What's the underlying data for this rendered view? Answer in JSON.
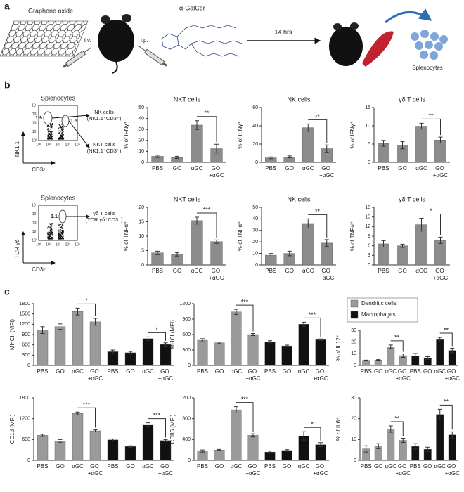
{
  "labels": {
    "a": "a",
    "b": "b",
    "c": "c"
  },
  "scheme": {
    "material": "Graphene oxide",
    "route1": "i.v.",
    "route2": "i.p.",
    "drug": "α-GalCer",
    "time": "14 hrs",
    "cells": "Splenocytes"
  },
  "flow": [
    {
      "title": "Splenocytes",
      "ylabel": "NK1.1",
      "xlabel": "CD3ε",
      "ticks": [
        "10⁰",
        "10¹",
        "10²",
        "10³",
        "10⁴"
      ],
      "gates": [
        {
          "value": 1.9,
          "label": [
            "NK cells",
            "(NK1.1⁺CD3⁻)"
          ]
        },
        {
          "value": 1.5,
          "label": [
            "NKT cells",
            "(NK1.1⁺CD3⁺)"
          ]
        }
      ]
    },
    {
      "title": "Splenocytes",
      "ylabel": "TCR γδ",
      "xlabel": "CD3ε",
      "ticks": [
        "10⁰",
        "10¹",
        "10²",
        "10³",
        "10⁴"
      ],
      "gates": [
        {
          "value": 1.1,
          "label": [
            "γδ T cells",
            "(TCR γδ⁺CD3⁺)"
          ]
        }
      ]
    }
  ],
  "chart_data": [
    {
      "type": "bar",
      "title": "NKT cells",
      "ylabel": "% of IFNγ⁺",
      "categories": [
        "PBS",
        "GO",
        "αGC",
        "GO +αGC"
      ],
      "values": [
        5.5,
        4.5,
        34,
        12.5
      ],
      "errors": [
        1,
        1,
        4,
        4
      ],
      "color": "#8c8c8c",
      "ylim": [
        0,
        50
      ],
      "yticks": [
        0,
        10,
        20,
        30,
        40,
        50
      ],
      "significance": "**"
    },
    {
      "type": "bar",
      "title": "NK cells",
      "ylabel": "% of IFNγ⁺",
      "categories": [
        "PBS",
        "GO",
        "αGC",
        "GO +αGC"
      ],
      "values": [
        5,
        6,
        38,
        15
      ],
      "errors": [
        1,
        1,
        4,
        4
      ],
      "color": "#8c8c8c",
      "ylim": [
        0,
        60
      ],
      "yticks": [
        0,
        20,
        40,
        60
      ],
      "significance": "**"
    },
    {
      "type": "bar",
      "title": "γδ T cells",
      "ylabel": "% of IFNγ⁺",
      "categories": [
        "PBS",
        "GO",
        "αGC",
        "GO +αGC"
      ],
      "values": [
        5.2,
        4.7,
        9.9,
        6.1
      ],
      "errors": [
        0.8,
        1,
        0.8,
        0.8
      ],
      "color": "#8c8c8c",
      "ylim": [
        0,
        15
      ],
      "yticks": [
        0,
        5,
        10,
        15
      ],
      "significance": "**"
    },
    {
      "type": "bar",
      "title": "NKT cells",
      "ylabel": "% of TNFα⁺",
      "categories": [
        "PBS",
        "GO",
        "αGC",
        "GO +αGC"
      ],
      "values": [
        4.2,
        3.7,
        15.4,
        8.1
      ],
      "errors": [
        0.6,
        0.6,
        1.2,
        0.6
      ],
      "color": "#8c8c8c",
      "ylim": [
        0,
        20
      ],
      "yticks": [
        0,
        5,
        10,
        15,
        20
      ],
      "significance": "***"
    },
    {
      "type": "bar",
      "title": "NK cells",
      "ylabel": "% of TNFα⁺",
      "categories": [
        "PBS",
        "GO",
        "αGC",
        "GO +αGC"
      ],
      "values": [
        8.5,
        10,
        36,
        19
      ],
      "errors": [
        1.5,
        2,
        4,
        3
      ],
      "color": "#8c8c8c",
      "ylim": [
        0,
        50
      ],
      "yticks": [
        0,
        10,
        20,
        30,
        40,
        50
      ],
      "significance": "**"
    },
    {
      "type": "bar",
      "title": "γδ T cells",
      "ylabel": "% of TNFα⁺",
      "categories": [
        "PBS",
        "GO",
        "αGC",
        "GO +αGC"
      ],
      "values": [
        6.6,
        6,
        12.6,
        7.7
      ],
      "errors": [
        1,
        0.5,
        2,
        1
      ],
      "color": "#8c8c8c",
      "ylim": [
        0,
        18
      ],
      "yticks": [
        0,
        3,
        6,
        9,
        12,
        15,
        18
      ],
      "significance": "*"
    },
    {
      "type": "bar",
      "ylabel": "MHCII (MFI)",
      "categories": [
        "PBS",
        "GO",
        "αGC",
        "GO +αGC"
      ],
      "series": [
        {
          "color": "#9a9a9a",
          "values": [
            1030,
            1130,
            1570,
            1270
          ],
          "errors": [
            100,
            80,
            100,
            100
          ]
        },
        {
          "color": "#111111",
          "values": [
            400,
            370,
            780,
            610
          ],
          "errors": [
            50,
            40,
            50,
            50
          ]
        }
      ],
      "ylim": [
        0,
        1800
      ],
      "yticks": [
        0,
        300,
        600,
        900,
        1200,
        1500,
        1800
      ],
      "significance": [
        "*",
        "*"
      ]
    },
    {
      "type": "bar",
      "ylabel": "MHCI (MFI)",
      "categories": [
        "PBS",
        "GO",
        "αGC",
        "GO +αGC"
      ],
      "series": [
        {
          "color": "#9a9a9a",
          "values": [
            490,
            440,
            1040,
            600
          ],
          "errors": [
            30,
            15,
            50,
            20
          ]
        },
        {
          "color": "#111111",
          "values": [
            460,
            380,
            800,
            500
          ],
          "errors": [
            20,
            15,
            40,
            15
          ]
        }
      ],
      "ylim": [
        0,
        1200
      ],
      "yticks": [
        0,
        300,
        600,
        900,
        1200
      ],
      "significance": [
        "***",
        "***"
      ]
    },
    {
      "type": "bar",
      "ylabel": "% of IL12⁺",
      "categories": [
        "PBS",
        "GO",
        "αGC",
        "GO +αGC"
      ],
      "series": [
        {
          "name": "Dendritic cells",
          "color": "#9a9a9a",
          "values": [
            4.3,
            4.7,
            16,
            8.4
          ],
          "errors": [
            0.3,
            0.3,
            1.5,
            1.5
          ]
        },
        {
          "name": "Macrophages",
          "color": "#111111",
          "values": [
            8.2,
            6.3,
            22,
            12.8
          ],
          "errors": [
            2,
            1.2,
            2,
            2
          ]
        }
      ],
      "ylim": [
        0,
        30
      ],
      "yticks": [
        0,
        10,
        20,
        30
      ],
      "significance": [
        "**",
        "**"
      ],
      "legend": "top"
    },
    {
      "type": "bar",
      "ylabel": "CD1d (MFI)",
      "categories": [
        "PBS",
        "GO",
        "αGC",
        "GO +αGC"
      ],
      "series": [
        {
          "color": "#9a9a9a",
          "values": [
            720,
            560,
            1350,
            850
          ],
          "errors": [
            30,
            40,
            40,
            30
          ]
        },
        {
          "color": "#111111",
          "values": [
            590,
            400,
            1030,
            570
          ],
          "errors": [
            30,
            20,
            50,
            30
          ]
        }
      ],
      "ylim": [
        0,
        1800
      ],
      "yticks": [
        0,
        600,
        1200,
        1800
      ],
      "significance": [
        "***",
        "***"
      ]
    },
    {
      "type": "bar",
      "ylabel": "CD86 (MFI)",
      "categories": [
        "PBS",
        "GO",
        "αGC",
        "GO +αGC"
      ],
      "series": [
        {
          "color": "#9a9a9a",
          "values": [
            180,
            200,
            970,
            480
          ],
          "errors": [
            20,
            10,
            60,
            30
          ]
        },
        {
          "color": "#111111",
          "values": [
            160,
            190,
            470,
            300
          ],
          "errors": [
            20,
            15,
            80,
            40
          ]
        }
      ],
      "ylim": [
        0,
        1200
      ],
      "yticks": [
        0,
        400,
        800,
        1200
      ],
      "significance": [
        "***",
        "*"
      ]
    },
    {
      "type": "bar",
      "ylabel": "% of IL6⁺",
      "categories": [
        "PBS",
        "GO",
        "αGC",
        "GO +αGC"
      ],
      "series": [
        {
          "color": "#9a9a9a",
          "values": [
            5.5,
            6.8,
            15,
            9.6
          ],
          "errors": [
            1.5,
            1.2,
            1.5,
            1
          ]
        },
        {
          "color": "#111111",
          "values": [
            6.7,
            5.3,
            22,
            12.2
          ],
          "errors": [
            1.3,
            1,
            2.5,
            1.5
          ]
        }
      ],
      "ylim": [
        0,
        30
      ],
      "yticks": [
        0,
        10,
        20,
        30
      ],
      "significance": [
        "**",
        "**"
      ]
    }
  ]
}
